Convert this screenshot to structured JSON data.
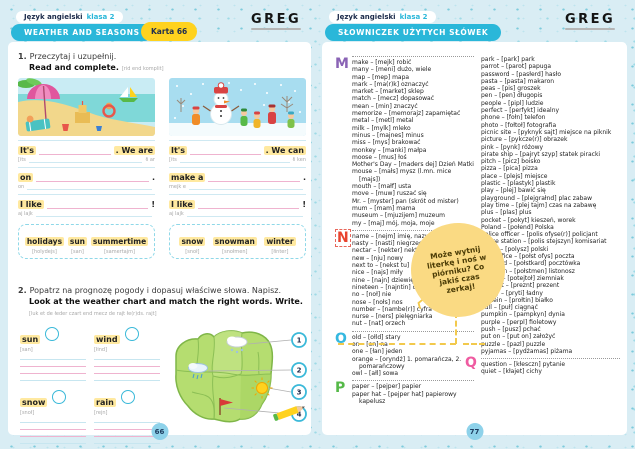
{
  "left_page": {
    "subject": "Język angielski",
    "grade": "klasa 2",
    "title": "WEATHER AND SEASONS",
    "card": "Karta 66",
    "logo": "GREG",
    "page_number": "66",
    "exercise1": {
      "number": "1.",
      "instruction_pl": "Przeczytaj i uzupełnij.",
      "instruction_en": "Read and complete.",
      "instruction_pron": "[rid end komplit]",
      "summer": {
        "illustration": "beach-summer-scene",
        "rows": [
          {
            "pre": "It's",
            "post": ". We are",
            "pron_pre": "[its",
            "pron_post": "łi ar"
          },
          {
            "pre": "on",
            "post": ".",
            "pron_pre": "on",
            "pron_post": ""
          },
          {
            "pre": "I like",
            "post": "!",
            "pron_pre": "aj lajk",
            "pron_post": ""
          }
        ],
        "word_bank": [
          {
            "word": "holidays",
            "pron": "[holydejs]"
          },
          {
            "word": "sun",
            "pron": "[san]"
          },
          {
            "word": "summertime",
            "pron": "[samertajm]"
          }
        ]
      },
      "winter": {
        "illustration": "winter-snowman-scene",
        "rows": [
          {
            "pre": "It's",
            "post": ". We can",
            "pron_pre": "[its",
            "pron_post": "łi ken"
          },
          {
            "pre": "make a",
            "post": ".",
            "pron_pre": "mejk e",
            "pron_post": ""
          },
          {
            "pre": "I like",
            "post": "!",
            "pron_pre": "aj lajk",
            "pron_post": ""
          }
        ],
        "word_bank": [
          {
            "word": "snow",
            "pron": "[snoł]"
          },
          {
            "word": "snowman",
            "pron": "[snołmen]"
          },
          {
            "word": "winter",
            "pron": "[łinter]"
          }
        ]
      }
    },
    "exercise2": {
      "number": "2.",
      "instruction_pl": "Popatrz na prognozę pogody i dopasuj właściwe słowa. Napisz.",
      "instruction_en": "Look at the weather chart and match the right words. Write.",
      "instruction_pron": "[luk et de łeder czart end mecz de rajt łe(r)ds. rajt]",
      "words": [
        {
          "word": "sun",
          "pron": "[san]"
        },
        {
          "word": "wind",
          "pron": "[łind]"
        },
        {
          "word": "snow",
          "pron": "[snoł]"
        },
        {
          "word": "rain",
          "pron": "[rejn]"
        }
      ],
      "map_numbers": [
        "1",
        "2",
        "3",
        "4"
      ],
      "map_icons": [
        "snow-cloud-icon",
        "rain-cloud-icon",
        "sun-icon",
        "wind-flag-icon"
      ]
    }
  },
  "right_page": {
    "subject": "Język angielski",
    "grade": "klasa 2",
    "title": "SŁOWNICZEK UŻYTYCH SŁÓWEK",
    "logo": "GREG",
    "page_number": "77",
    "note": "Może wytnij literkę i noś w piórniku? Co jakiś czas zerkaj!",
    "glossary": {
      "left_column": [
        {
          "letter": "M",
          "color": "#8a63b5",
          "entries": [
            "make – [mejk] robić",
            "many – [meni] dużo, wiele",
            "map – [mep] mapa",
            "mark – [ma(r)k] oznaczyć",
            "market – [market] sklep",
            "match – [mecz] dopasować",
            "mean – [min] znaczyć",
            "memorize – [memorajz] zapamiętać",
            "metal – [metl] metal",
            "milk – [mylk] mleko",
            "minus – [majnes] minus",
            "miss – [mys] brakować",
            "monkey – [manki] małpa",
            "moose – [mus] łoś",
            "Mother's Day – [maders dej] Dzień Matki",
            "mouse – [małs] mysz (l.mn. mice [majs])",
            "mouth – [małf] usta",
            "move – [muw] ruszać się",
            "Mr. – [myster] pan (skrót od mister)",
            "mum – [mam] mama",
            "museum – [mjuzijem] muzeum",
            "my – [maj] mój, moja, moje"
          ]
        },
        {
          "letter": "N",
          "color": "#e8432e",
          "cut_marks": true,
          "entries": [
            "name – [nejm] imię, nazwa",
            "nasty – [nasti] niegrzeczny",
            "nectar – [nekter] nektar",
            "new – [nju] nowy",
            "next to – [nekst tu] obok",
            "nice – [najs] miły",
            "nine – [najn] dziewięć",
            "nineteen – [najntin] dziewiętnaście",
            "no – [noł] nie",
            "nose – [nołs] nos",
            "number – [nambe(r)] cyfra",
            "nurse – [ners] pielęgniarka",
            "nut – [nat] orzech"
          ]
        },
        {
          "letter": "O",
          "color": "#35b8e0",
          "entries": [
            "old – [ołld] stary",
            "on – [on] na",
            "one – [łan] jeden",
            "orange – [oryndż] 1. pomarańcza, 2. pomarańczowy",
            "owl – [ałl] sowa"
          ]
        },
        {
          "letter": "P",
          "color": "#55b948",
          "entries": [
            "paper – [pejper] papier",
            "paper hat – [pejper hat] papierowy kapelusz"
          ]
        }
      ],
      "right_column": [
        {
          "letter": "",
          "entries": [
            "park – [park] park",
            "parrot – [parot] papuga",
            "password – [pasłerd] hasło",
            "pasta – [pasta] makaron",
            "peas – [pis] groszek",
            "pen – [pen] długopis",
            "people – [pipl] ludzie",
            "perfect – [perfykt] idealny",
            "phone – [fołn] telefon",
            "photo – [fołtoł] fotografia",
            "picnic site – [pyknyk sajt] miejsce na piknik",
            "picture – [pykcze(r)] obrazek",
            "pink – [pynk] różowy",
            "pirate ship – [pajryt szyp] statek piracki",
            "pitch – [picz] boisko",
            "pizza – [pica] pizza",
            "place – [plejs] miejsce",
            "plastic – [plastyk] plastik",
            "play – [plej] bawić się",
            "playground – [plejgrałnd] plac zabaw",
            "play time – [plej tajm] czas na zabawę",
            "plus – [plas] plus",
            "pocket – [pokyt] kieszeń, worek",
            "Poland – [połend] Polska",
            "police officer – [polis ofyse(r)] policjant",
            "police station – [polis stejszyn] komisariat",
            "Polish – [polysz] polski",
            "post office – [połst ofys] poczta",
            "postcard – [połstkard] pocztówka",
            "postman – [połstmen] listonosz",
            "potato – [potejtoł] ziemniak",
            "present – [preznt] prezent",
            "pretty – [pryti] ładny",
            "protein – [prołtin] białko",
            "pull – [puł] ciągnąć",
            "pumpkin – [pampkyn] dynia",
            "purple – [perpl] fioletowy",
            "push – [pusz] pchać",
            "put on – [put on] założyć",
            "puzzle – [pazl] puzzle",
            "pyjamas – [pydżamas] piżama"
          ]
        },
        {
          "letter": "Q",
          "color": "#ef5ba1",
          "entries": [
            "question – [kłesczn] pytanie",
            "quiet – [kłajet] cichy"
          ]
        }
      ]
    }
  }
}
